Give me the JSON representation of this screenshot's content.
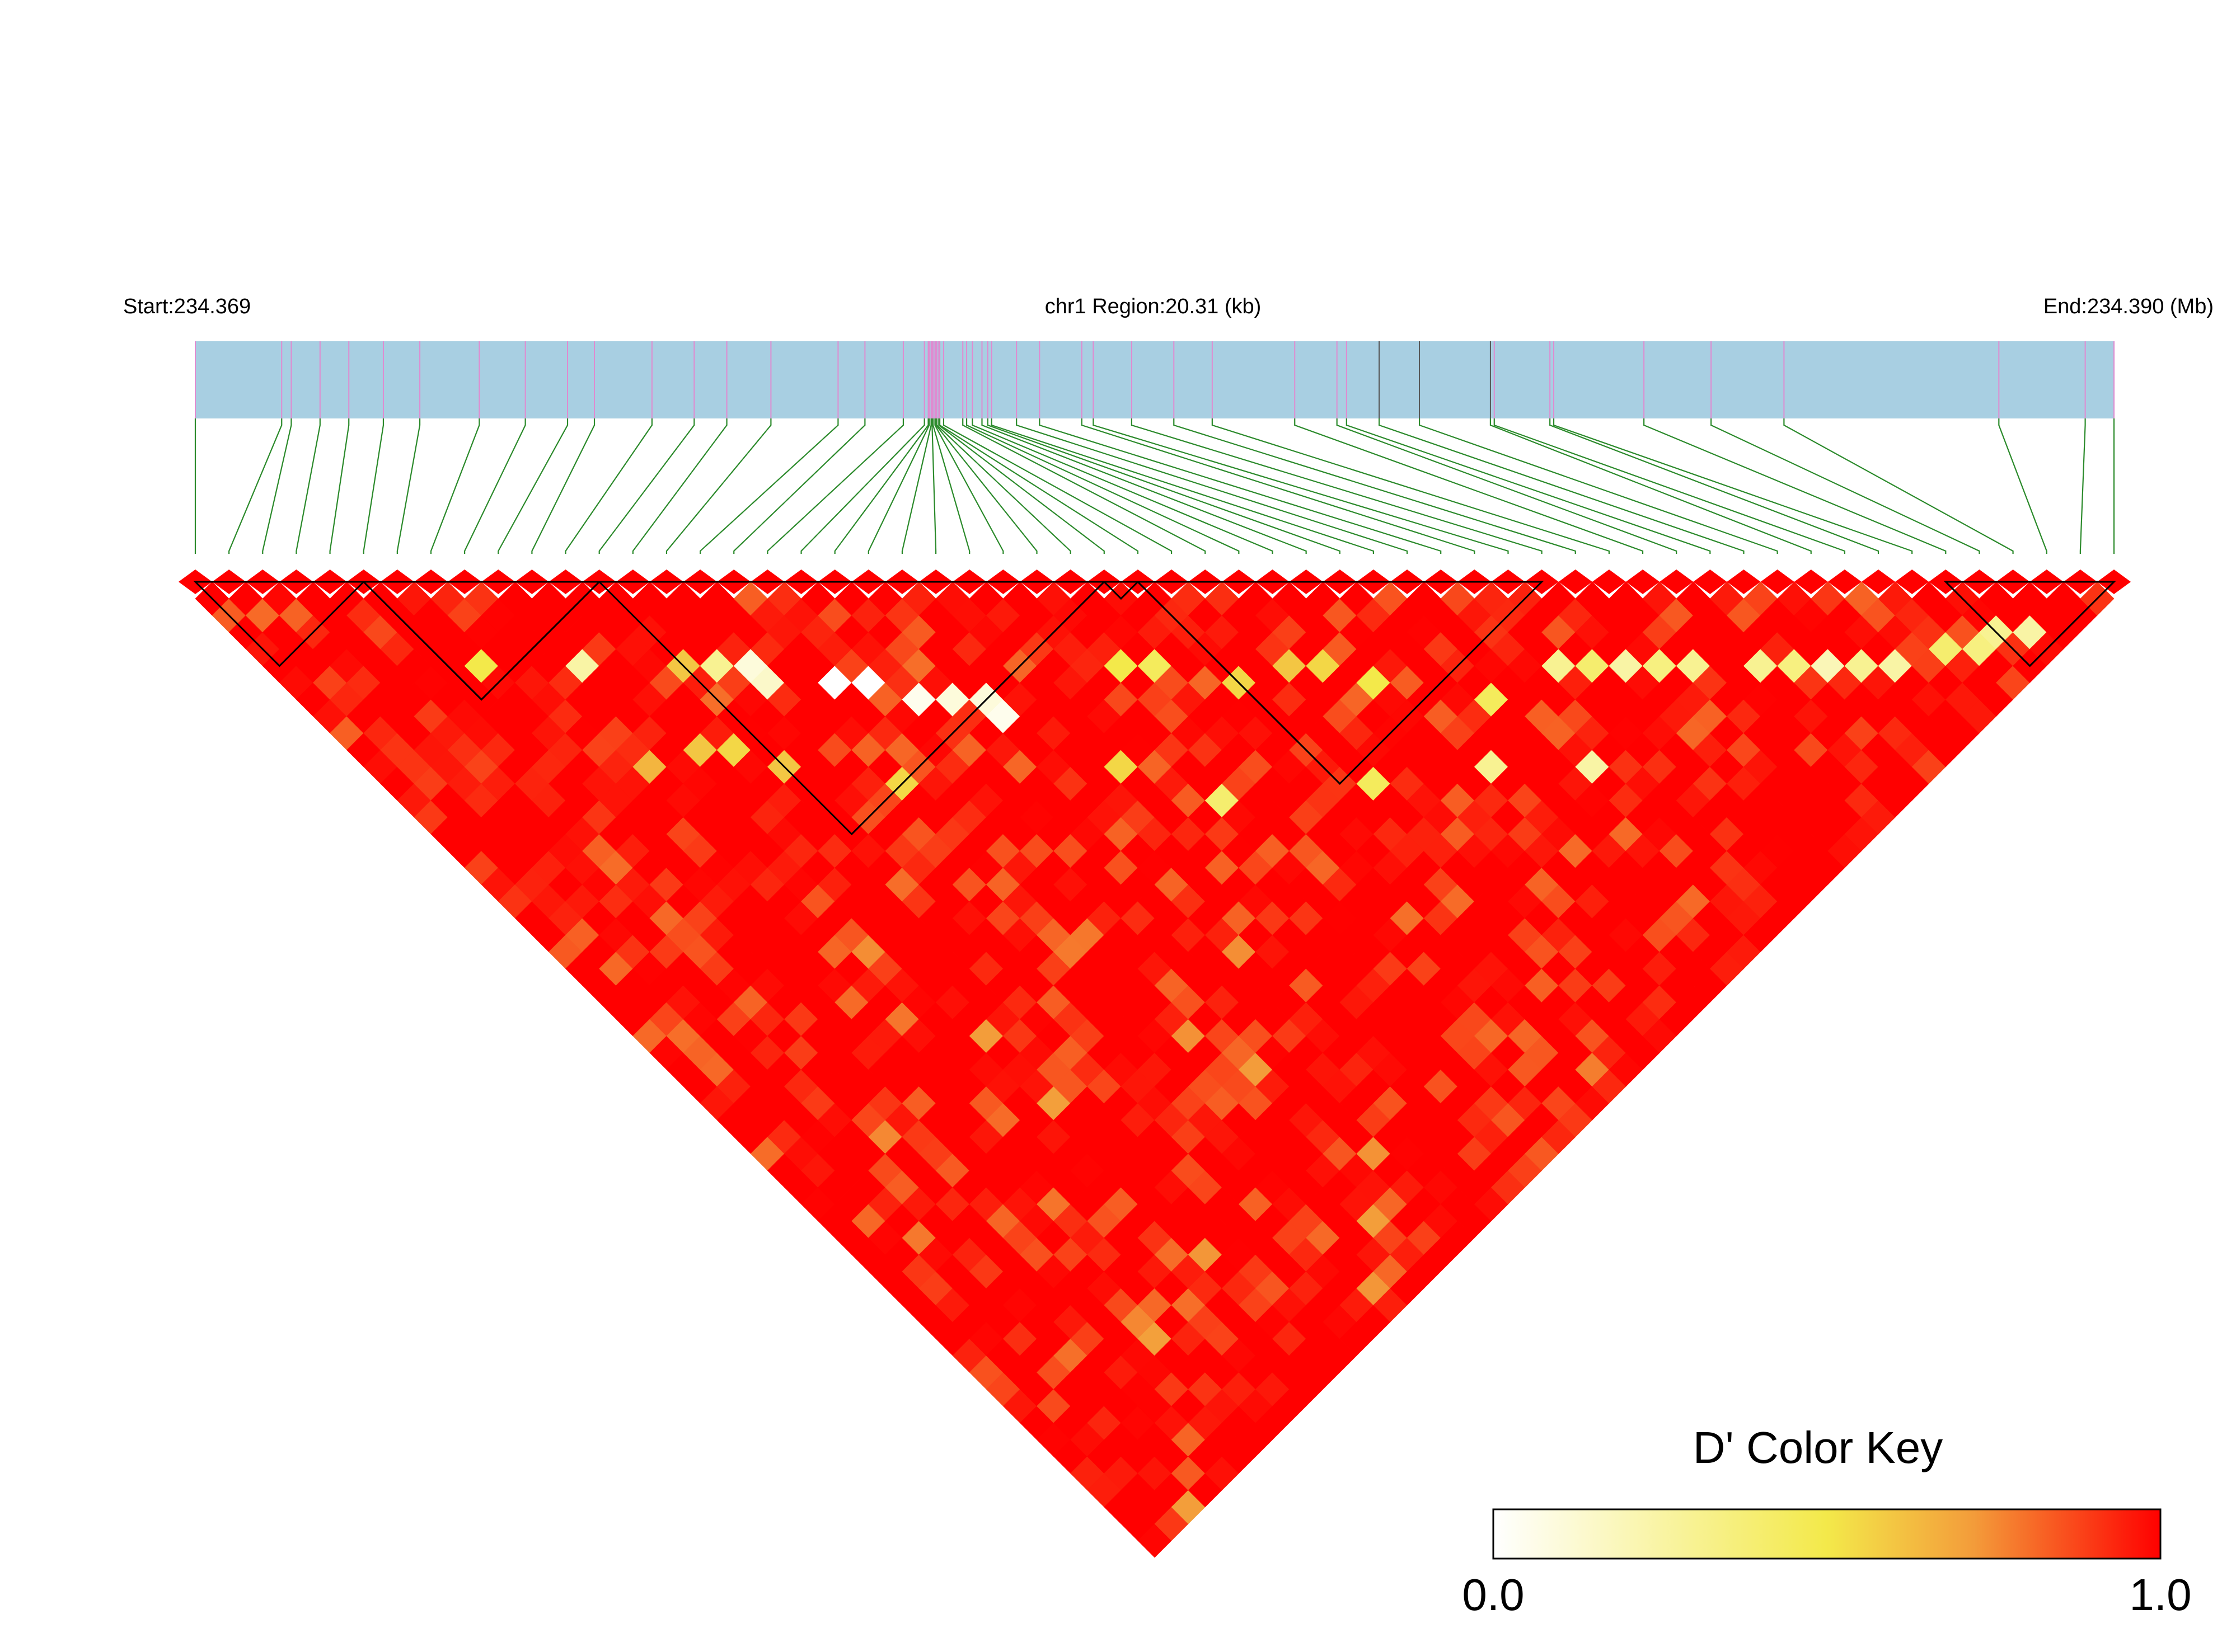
{
  "header": {
    "start_label": "Start:234.369",
    "region_label": "chr1 Region:20.31 (kb)",
    "end_label": "End:234.390 (Mb)"
  },
  "legend": {
    "title": "D' Color Key",
    "min_label": "0.0",
    "max_label": "1.0",
    "gradient": [
      "#ffffff",
      "#f3e94a",
      "#f39c3a",
      "#ff0000"
    ]
  },
  "colors": {
    "track_fill": "#a8cfe2",
    "snp_tick": "#e08ad0",
    "snp_tick_dark": "#555555",
    "connector": "#2b8a2b",
    "block_outline": "#000000"
  },
  "chart_data": {
    "type": "heatmap",
    "chromosome": "chr1",
    "region_kb": 20.31,
    "start_mb": 234.369,
    "end_mb": 234.39,
    "color_scale": {
      "metric": "D'",
      "min": 0.0,
      "max": 1.0
    },
    "snp_count": 58,
    "snp_positions_rel": [
      0,
      0.045,
      0.05,
      0.065,
      0.08,
      0.098,
      0.117,
      0.148,
      0.172,
      0.194,
      0.208,
      0.238,
      0.26,
      0.277,
      0.3,
      0.335,
      0.349,
      0.369,
      0.38,
      0.4,
      0.402,
      0.41,
      0.413,
      0.415,
      0.382,
      0.384,
      0.386,
      0.388,
      0.39,
      0.3825,
      0.3835,
      0.3845,
      0.3855,
      0.3865,
      0.3875,
      0.405,
      0.428,
      0.44,
      0.462,
      0.468,
      0.488,
      0.51,
      0.53,
      0.573,
      0.595,
      0.6,
      0.617,
      0.638,
      0.675,
      0.677,
      0.706,
      0.708,
      0.755,
      0.79,
      0.828,
      0.94,
      0.985,
      1.0
    ],
    "haplotype_blocks": [
      [
        0,
        5
      ],
      [
        5,
        12
      ],
      [
        12,
        27
      ],
      [
        27,
        28
      ],
      [
        28,
        40
      ],
      [
        52,
        57
      ]
    ],
    "low_d_cells": [
      [
        9,
        14,
        0.25
      ],
      [
        6,
        11,
        0.5
      ],
      [
        12,
        17,
        0.6
      ],
      [
        13,
        18,
        0.3
      ],
      [
        14,
        19,
        0.1
      ],
      [
        14,
        20,
        0.15
      ],
      [
        16,
        22,
        0.0
      ],
      [
        17,
        23,
        0.0
      ],
      [
        18,
        25,
        0.05
      ],
      [
        19,
        26,
        0.1
      ],
      [
        20,
        27,
        0.1
      ],
      [
        20,
        28,
        0.05
      ],
      [
        25,
        30,
        0.5
      ],
      [
        26,
        31,
        0.45
      ],
      [
        28,
        34,
        0.55
      ],
      [
        30,
        35,
        0.6
      ],
      [
        31,
        36,
        0.55
      ],
      [
        32,
        38,
        0.5
      ],
      [
        38,
        43,
        0.3
      ],
      [
        39,
        44,
        0.4
      ],
      [
        40,
        45,
        0.25
      ],
      [
        41,
        46,
        0.35
      ],
      [
        42,
        47,
        0.3
      ],
      [
        44,
        49,
        0.3
      ],
      [
        45,
        50,
        0.35
      ],
      [
        46,
        51,
        0.2
      ],
      [
        47,
        52,
        0.3
      ],
      [
        48,
        53,
        0.25
      ],
      [
        50,
        54,
        0.4
      ],
      [
        51,
        55,
        0.35
      ],
      [
        52,
        55,
        0.3
      ],
      [
        53,
        56,
        0.25
      ],
      [
        35,
        42,
        0.45
      ],
      [
        22,
        33,
        0.55
      ],
      [
        24,
        37,
        0.4
      ],
      [
        29,
        41,
        0.45
      ],
      [
        33,
        44,
        0.3
      ],
      [
        36,
        47,
        0.25
      ],
      [
        10,
        20,
        0.6
      ],
      [
        11,
        21,
        0.55
      ],
      [
        12,
        23,
        0.6
      ],
      [
        8,
        19,
        0.65
      ],
      [
        15,
        27,
        0.55
      ]
    ]
  }
}
